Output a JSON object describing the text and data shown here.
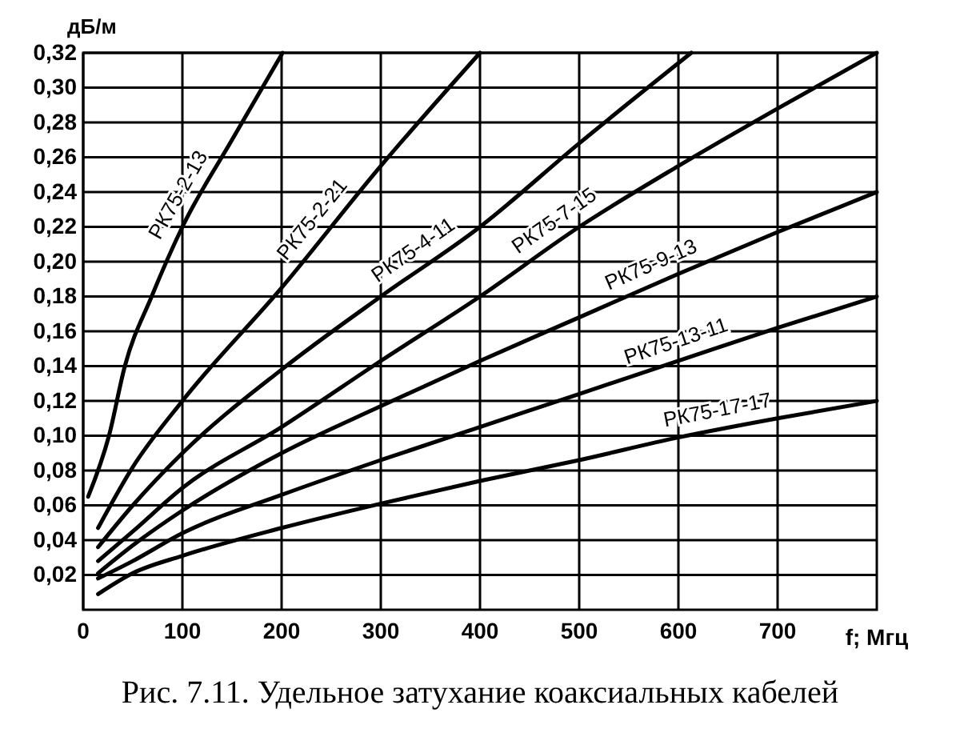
{
  "chart_data": {
    "type": "line",
    "title": "Рис. 7.11. Удельное затухание коаксиальных кабелей",
    "xlabel": "f; Мгц",
    "ylabel": "дБ/м",
    "xlim": [
      0,
      800
    ],
    "ylim": [
      0,
      0.32
    ],
    "xticks": [
      0,
      100,
      200,
      300,
      400,
      500,
      600,
      700
    ],
    "yticks": [
      {
        "value": 0.02,
        "label": "0,02"
      },
      {
        "value": 0.04,
        "label": "0,04"
      },
      {
        "value": 0.06,
        "label": "0,06"
      },
      {
        "value": 0.08,
        "label": "0,08"
      },
      {
        "value": 0.1,
        "label": "0,10"
      },
      {
        "value": 0.12,
        "label": "0,12"
      },
      {
        "value": 0.14,
        "label": "0,14"
      },
      {
        "value": 0.16,
        "label": "0,16"
      },
      {
        "value": 0.18,
        "label": "0,18"
      },
      {
        "value": 0.2,
        "label": "0,20"
      },
      {
        "value": 0.22,
        "label": "0,22"
      },
      {
        "value": 0.24,
        "label": "0,24"
      },
      {
        "value": 0.26,
        "label": "0,26"
      },
      {
        "value": 0.28,
        "label": "0,28"
      },
      {
        "value": 0.3,
        "label": "0,30"
      },
      {
        "value": 0.32,
        "label": "0,32"
      }
    ],
    "grid": true,
    "line_style": "solid",
    "marker": "none",
    "series": [
      {
        "name": "РК75-2-13",
        "color": "#000000",
        "x": [
          5,
          26,
          42,
          69,
          100,
          150,
          201
        ],
        "values": [
          0.065,
          0.1,
          0.14,
          0.18,
          0.22,
          0.27,
          0.32
        ]
      },
      {
        "name": "РК75-2-21",
        "color": "#000000",
        "x": [
          15,
          50,
          100,
          200,
          300,
          400
        ],
        "values": [
          0.047,
          0.082,
          0.12,
          0.185,
          0.255,
          0.32
        ]
      },
      {
        "name": "РК75-4-11",
        "color": "#000000",
        "x": [
          15,
          50,
          100,
          200,
          300,
          400,
          500,
          613
        ],
        "values": [
          0.036,
          0.06,
          0.09,
          0.138,
          0.18,
          0.22,
          0.268,
          0.32
        ]
      },
      {
        "name": "РК75-7-15",
        "color": "#000000",
        "x": [
          15,
          50,
          100,
          200,
          300,
          400,
          500,
          600,
          700,
          800
        ],
        "values": [
          0.028,
          0.045,
          0.07,
          0.105,
          0.143,
          0.18,
          0.22,
          0.255,
          0.288,
          0.32
        ]
      },
      {
        "name": "РК75-9-13",
        "color": "#000000",
        "x": [
          15,
          50,
          100,
          200,
          300,
          400,
          500,
          600,
          700,
          800
        ],
        "values": [
          0.021,
          0.037,
          0.057,
          0.09,
          0.117,
          0.143,
          0.168,
          0.193,
          0.217,
          0.24
        ]
      },
      {
        "name": "РК75-13-11",
        "color": "#000000",
        "x": [
          15,
          50,
          100,
          200,
          300,
          400,
          500,
          600,
          700,
          800
        ],
        "values": [
          0.018,
          0.028,
          0.044,
          0.066,
          0.086,
          0.105,
          0.124,
          0.143,
          0.162,
          0.18
        ]
      },
      {
        "name": "РК75-17-17",
        "color": "#000000",
        "x": [
          15,
          50,
          100,
          200,
          300,
          400,
          500,
          600,
          700,
          800
        ],
        "values": [
          0.009,
          0.021,
          0.031,
          0.047,
          0.061,
          0.074,
          0.086,
          0.099,
          0.11,
          0.12
        ]
      }
    ]
  }
}
